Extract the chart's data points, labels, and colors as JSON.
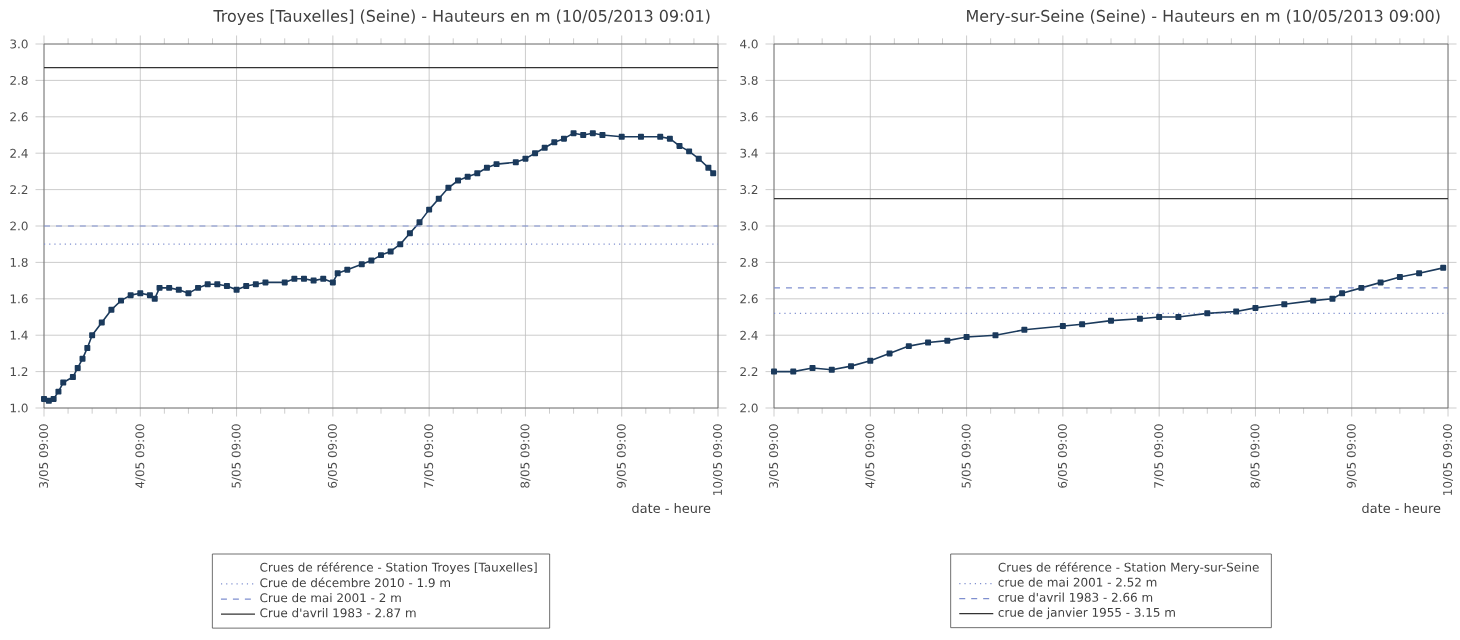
{
  "chart_data": [
    {
      "type": "line",
      "title": "Troyes [Tauxelles] (Seine) - Hauteurs en m (10/05/2013 09:01)",
      "xlabel": "date - heure",
      "legend_title": "Crues de référence - Station Troyes [Tauxelles]",
      "legend": "bottom",
      "grid": true,
      "marker": "square",
      "line_style": "solid",
      "xlim": [
        "2013-05-03T09:00",
        "2013-05-10T09:00"
      ],
      "xticks": [
        {
          "value": "2013-05-03T09:00",
          "label": "3/05 09:00"
        },
        {
          "value": "2013-05-04T09:00",
          "label": "4/05 09:00"
        },
        {
          "value": "2013-05-05T09:00",
          "label": "5/05 09:00"
        },
        {
          "value": "2013-05-06T09:00",
          "label": "6/05 09:00"
        },
        {
          "value": "2013-05-07T09:00",
          "label": "7/05 09:00"
        },
        {
          "value": "2013-05-08T09:00",
          "label": "8/05 09:00"
        },
        {
          "value": "2013-05-09T09:00",
          "label": "9/05 09:00"
        },
        {
          "value": "2013-05-10T09:00",
          "label": "10/05 09:00"
        }
      ],
      "ylim": [
        1.0,
        3.0
      ],
      "yticks": [
        {
          "value": 1.0,
          "label": "1.0"
        },
        1.2,
        1.4,
        1.6,
        1.8,
        {
          "value": 2.0,
          "label": "2.0"
        },
        2.2,
        2.4,
        2.6,
        2.8,
        {
          "value": 3.0,
          "label": "3.0"
        }
      ],
      "ref_lines": [
        {
          "axis": "y",
          "value": 1.9,
          "label": "Crue de décembre 2010 - 1.9 m",
          "color": "#7f8fcf",
          "line_style": "dotted"
        },
        {
          "axis": "y",
          "value": 2,
          "label": "Crue de mai 2001 - 2 m",
          "color": "#7f8fcf",
          "line_style": "dashed"
        },
        {
          "axis": "y",
          "value": 2.87,
          "label": "Crue d'avril 1983 - 2.87 m",
          "color": "#333333",
          "line_style": "solid"
        }
      ],
      "series": [
        {
          "color": "#1b3a5c",
          "x": [
            "2013-05-03T09:00",
            "2013-05-03T10:12",
            "2013-05-03T11:24",
            "2013-05-03T12:36",
            "2013-05-03T13:48",
            "2013-05-03T16:12",
            "2013-05-03T17:24",
            "2013-05-03T18:36",
            "2013-05-03T19:48",
            "2013-05-03T21:00",
            "2013-05-03T23:24",
            "2013-05-04T01:48",
            "2013-05-04T04:12",
            "2013-05-04T06:36",
            "2013-05-04T09:00",
            "2013-05-04T11:24",
            "2013-05-04T12:36",
            "2013-05-04T13:48",
            "2013-05-04T16:12",
            "2013-05-04T18:36",
            "2013-05-04T21:00",
            "2013-05-04T23:24",
            "2013-05-05T01:48",
            "2013-05-05T04:12",
            "2013-05-05T06:36",
            "2013-05-05T09:00",
            "2013-05-05T11:24",
            "2013-05-05T13:48",
            "2013-05-05T16:12",
            "2013-05-05T21:00",
            "2013-05-05T23:24",
            "2013-05-06T01:48",
            "2013-05-06T04:12",
            "2013-05-06T06:36",
            "2013-05-06T09:00",
            "2013-05-06T10:12",
            "2013-05-06T12:36",
            "2013-05-06T16:12",
            "2013-05-06T18:36",
            "2013-05-06T21:00",
            "2013-05-06T23:24",
            "2013-05-07T01:48",
            "2013-05-07T04:12",
            "2013-05-07T06:36",
            "2013-05-07T09:00",
            "2013-05-07T11:24",
            "2013-05-07T13:48",
            "2013-05-07T16:12",
            "2013-05-07T18:36",
            "2013-05-07T21:00",
            "2013-05-07T23:24",
            "2013-05-08T01:48",
            "2013-05-08T06:36",
            "2013-05-08T09:00",
            "2013-05-08T11:24",
            "2013-05-08T13:48",
            "2013-05-08T16:12",
            "2013-05-08T18:36",
            "2013-05-08T21:00",
            "2013-05-08T23:24",
            "2013-05-09T01:48",
            "2013-05-09T04:12",
            "2013-05-09T09:00",
            "2013-05-09T13:48",
            "2013-05-09T18:36",
            "2013-05-09T21:00",
            "2013-05-09T23:24",
            "2013-05-10T01:48",
            "2013-05-10T04:12",
            "2013-05-10T06:36",
            "2013-05-10T07:48"
          ],
          "values": [
            1.05,
            1.04,
            1.05,
            1.09,
            1.14,
            1.17,
            1.22,
            1.27,
            1.33,
            1.4,
            1.47,
            1.54,
            1.59,
            1.62,
            1.63,
            1.62,
            1.6,
            1.66,
            1.66,
            1.65,
            1.63,
            1.66,
            1.68,
            1.68,
            1.67,
            1.65,
            1.67,
            1.68,
            1.69,
            1.69,
            1.71,
            1.71,
            1.7,
            1.71,
            1.69,
            1.74,
            1.76,
            1.79,
            1.81,
            1.84,
            1.86,
            1.9,
            1.96,
            2.02,
            2.09,
            2.15,
            2.21,
            2.25,
            2.27,
            2.29,
            2.32,
            2.34,
            2.35,
            2.37,
            2.4,
            2.43,
            2.46,
            2.48,
            2.51,
            2.5,
            2.51,
            2.5,
            2.49,
            2.49,
            2.49,
            2.48,
            2.44,
            2.41,
            2.37,
            2.32,
            2.29
          ]
        }
      ]
    },
    {
      "type": "line",
      "title": "Mery-sur-Seine (Seine) - Hauteurs en m (10/05/2013 09:00)",
      "xlabel": "date - heure",
      "legend_title": "Crues de référence - Station Mery-sur-Seine",
      "legend": "bottom",
      "grid": true,
      "marker": "square",
      "line_style": "solid",
      "xlim": [
        "2013-05-03T09:00",
        "2013-05-10T09:00"
      ],
      "xticks": [
        {
          "value": "2013-05-03T09:00",
          "label": "3/05 09:00"
        },
        {
          "value": "2013-05-04T09:00",
          "label": "4/05 09:00"
        },
        {
          "value": "2013-05-05T09:00",
          "label": "5/05 09:00"
        },
        {
          "value": "2013-05-06T09:00",
          "label": "6/05 09:00"
        },
        {
          "value": "2013-05-07T09:00",
          "label": "7/05 09:00"
        },
        {
          "value": "2013-05-08T09:00",
          "label": "8/05 09:00"
        },
        {
          "value": "2013-05-09T09:00",
          "label": "9/05 09:00"
        },
        {
          "value": "2013-05-10T09:00",
          "label": "10/05 09:00"
        }
      ],
      "ylim": [
        2.0,
        4.0
      ],
      "yticks": [
        {
          "value": 2.0,
          "label": "2.0"
        },
        2.2,
        2.4,
        2.6,
        2.8,
        {
          "value": 3.0,
          "label": "3.0"
        },
        3.2,
        3.4,
        3.6,
        3.8,
        {
          "value": 4.0,
          "label": "4.0"
        }
      ],
      "ref_lines": [
        {
          "axis": "y",
          "value": 2.52,
          "label": "crue de mai 2001 - 2.52 m",
          "color": "#7f8fcf",
          "line_style": "dotted"
        },
        {
          "axis": "y",
          "value": 2.66,
          "label": "crue d'avril 1983 - 2.66 m",
          "color": "#7f8fcf",
          "line_style": "dashed"
        },
        {
          "axis": "y",
          "value": 3.15,
          "label": "crue de janvier 1955 - 3.15 m",
          "color": "#333333",
          "line_style": "solid"
        }
      ],
      "series": [
        {
          "color": "#1b3a5c",
          "x": [
            "2013-05-03T09:00",
            "2013-05-03T13:48",
            "2013-05-03T18:36",
            "2013-05-03T23:24",
            "2013-05-04T04:12",
            "2013-05-04T09:00",
            "2013-05-04T13:48",
            "2013-05-04T18:36",
            "2013-05-04T23:24",
            "2013-05-05T04:12",
            "2013-05-05T09:00",
            "2013-05-05T16:12",
            "2013-05-05T23:24",
            "2013-05-06T09:00",
            "2013-05-06T13:48",
            "2013-05-06T21:00",
            "2013-05-07T04:12",
            "2013-05-07T09:00",
            "2013-05-07T13:48",
            "2013-05-07T21:00",
            "2013-05-08T04:12",
            "2013-05-08T09:00",
            "2013-05-08T16:12",
            "2013-05-08T23:24",
            "2013-05-09T04:12",
            "2013-05-09T06:36",
            "2013-05-09T11:24",
            "2013-05-09T16:12",
            "2013-05-09T21:00",
            "2013-05-10T01:48",
            "2013-05-10T07:48"
          ],
          "values": [
            2.2,
            2.2,
            2.22,
            2.21,
            2.23,
            2.26,
            2.3,
            2.34,
            2.36,
            2.37,
            2.39,
            2.4,
            2.43,
            2.45,
            2.46,
            2.48,
            2.49,
            2.5,
            2.5,
            2.52,
            2.53,
            2.55,
            2.57,
            2.59,
            2.6,
            2.63,
            2.66,
            2.69,
            2.72,
            2.74,
            2.77
          ]
        }
      ]
    }
  ]
}
